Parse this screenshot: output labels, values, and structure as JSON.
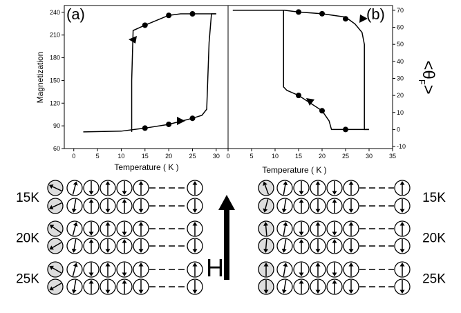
{
  "chart_data": [
    {
      "type": "line",
      "panel_label": "(a)",
      "xlabel": "Temperature ( K )",
      "ylabel": "Magnetization",
      "xlim": [
        -2,
        32.5
      ],
      "xticks": [
        0,
        5,
        10,
        15,
        20,
        25,
        30
      ],
      "ylim": [
        60,
        249
      ],
      "yticks": [
        60,
        90,
        120,
        150,
        180,
        210,
        240
      ],
      "series": [
        {
          "color": "#000000",
          "marker": "none",
          "x": [
            2,
            10,
            15,
            20,
            25,
            27,
            28,
            28.5,
            29,
            30
          ],
          "values": [
            82,
            83,
            87,
            92,
            100,
            104,
            112,
            200,
            238,
            238
          ]
        },
        {
          "color": "#000000",
          "marker": "none",
          "x": [
            30,
            25,
            22.5,
            20,
            15,
            12.5,
            12.2,
            12.2
          ],
          "values": [
            238,
            238,
            238,
            236,
            223,
            216,
            150,
            82
          ]
        },
        {
          "color": "#000000",
          "marker": "circle",
          "x": [
            15,
            20,
            25
          ],
          "values": [
            87,
            92,
            100
          ]
        },
        {
          "color": "#000000",
          "marker": "circle",
          "x": [
            15,
            20,
            25
          ],
          "values": [
            223,
            236,
            238
          ]
        }
      ]
    },
    {
      "type": "line",
      "panel_label": "(b)",
      "xlabel": "Temperature ( K )",
      "y2label": [
        "<",
        "θ",
        "F",
        ">"
      ],
      "xlim": [
        0,
        35
      ],
      "xticks": [
        0,
        5,
        10,
        15,
        20,
        25,
        30,
        35
      ],
      "y2lim": [
        -11.2,
        72.8
      ],
      "y2ticks": [
        -10,
        0,
        10,
        20,
        30,
        40,
        50,
        60,
        70
      ],
      "series": [
        {
          "color": "#000000",
          "marker": "none",
          "axis": "y2",
          "x": [
            1,
            12,
            15,
            20,
            25,
            27,
            28.5,
            29,
            29,
            30
          ],
          "values": [
            70,
            70,
            69,
            68,
            66,
            62,
            57,
            50,
            0,
            0
          ]
        },
        {
          "color": "#000000",
          "marker": "none",
          "axis": "y2",
          "x": [
            11.8,
            11.8,
            12.5,
            15,
            20,
            21.5,
            22,
            25,
            30
          ],
          "values": [
            70,
            25,
            23,
            20,
            11,
            5,
            0,
            0,
            0
          ]
        },
        {
          "color": "#000000",
          "marker": "circle",
          "axis": "y2",
          "x": [
            15,
            20,
            25
          ],
          "values": [
            69,
            68,
            65
          ]
        },
        {
          "color": "#000000",
          "marker": "circle",
          "axis": "y2",
          "x": [
            15,
            20,
            25
          ],
          "values": [
            20,
            11,
            0
          ]
        }
      ]
    }
  ],
  "field_label": "H",
  "temperatures_left": [
    "15K",
    "20K",
    "25K"
  ],
  "temperatures_right": [
    "15K",
    "20K",
    "25K"
  ]
}
